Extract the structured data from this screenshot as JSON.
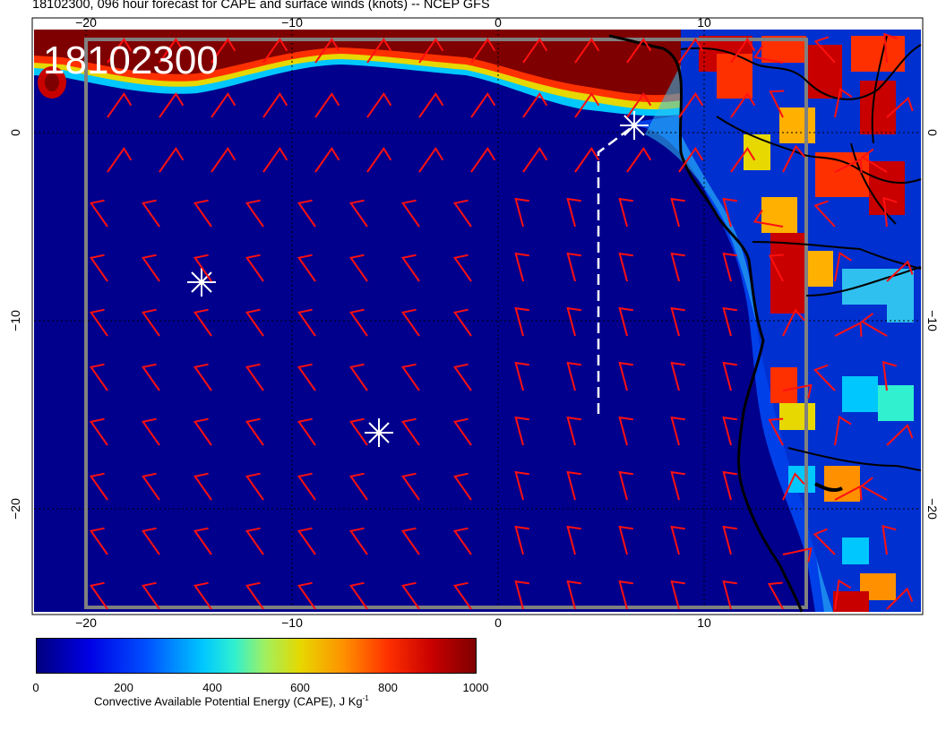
{
  "header": {
    "title": "18102300, 096 hour forecast for CAPE and surface winds (knots) -- NCEP GFS"
  },
  "map": {
    "date_stamp": "18102300",
    "lon_ticks": [
      "−20",
      "−10",
      "0",
      "10"
    ],
    "lat_ticks": [
      "0",
      "−10",
      "−20"
    ]
  },
  "colorbar": {
    "ticks": [
      "0",
      "200",
      "400",
      "600",
      "800",
      "1000"
    ],
    "label": "Convective Available Potential Energy (CAPE), J Kg",
    "label_sup": "-1",
    "min": 0,
    "max": 1000,
    "colors": [
      "#00007f",
      "#0000e5",
      "#0050ff",
      "#00c8ff",
      "#30f0d0",
      "#a0f060",
      "#e6d800",
      "#ff9000",
      "#ff3000",
      "#c80000",
      "#7f0000"
    ]
  },
  "overlays": {
    "wind_barb_color": "#ff1010",
    "coastline_color": "#000000",
    "marker_color": "#ffffff"
  }
}
